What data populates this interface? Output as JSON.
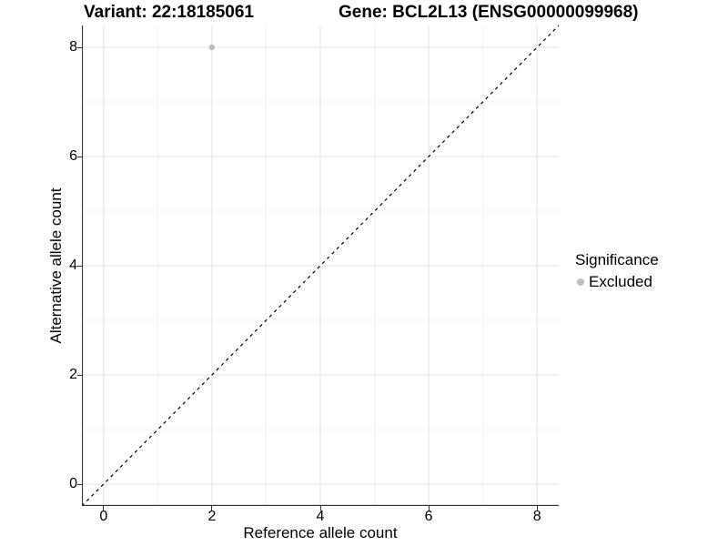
{
  "title": {
    "variant": "Variant: 22:18185061",
    "gene": "Gene: BCL2L13 (ENSG00000099968)"
  },
  "legend": {
    "title": "Significance",
    "entries": [
      {
        "label": "Excluded",
        "color": "#bdbdbd"
      }
    ]
  },
  "chart_data": {
    "type": "scatter",
    "title": "Variant: 22:18185061   Gene: BCL2L13 (ENSG00000099968)",
    "xlabel": "Reference allele count",
    "ylabel": "Alternative allele count",
    "xlim": [
      -0.4,
      8.4
    ],
    "ylim": [
      -0.4,
      8.4
    ],
    "xticks": [
      0,
      2,
      4,
      6,
      8
    ],
    "yticks": [
      0,
      2,
      4,
      6,
      8
    ],
    "minor_xticks": [
      1,
      3,
      5,
      7
    ],
    "minor_yticks": [
      1,
      3,
      5,
      7
    ],
    "grid": "on",
    "legend_position": "right",
    "series": [
      {
        "name": "Excluded",
        "color": "#bdbdbd",
        "points": [
          {
            "x": 2,
            "y": 8
          }
        ]
      }
    ],
    "reference_line": {
      "type": "identity",
      "style": "dashed",
      "color": "#000000",
      "from": [
        -0.4,
        -0.4
      ],
      "to": [
        8.4,
        8.4
      ]
    }
  },
  "colors": {
    "background": "#ffffff",
    "grid_major": "#e4e4e4",
    "grid_minor": "#f1f1f1",
    "axis_line": "#333333",
    "tick_mark": "#333333",
    "point": "#bdbdbd",
    "text": "#000000"
  }
}
